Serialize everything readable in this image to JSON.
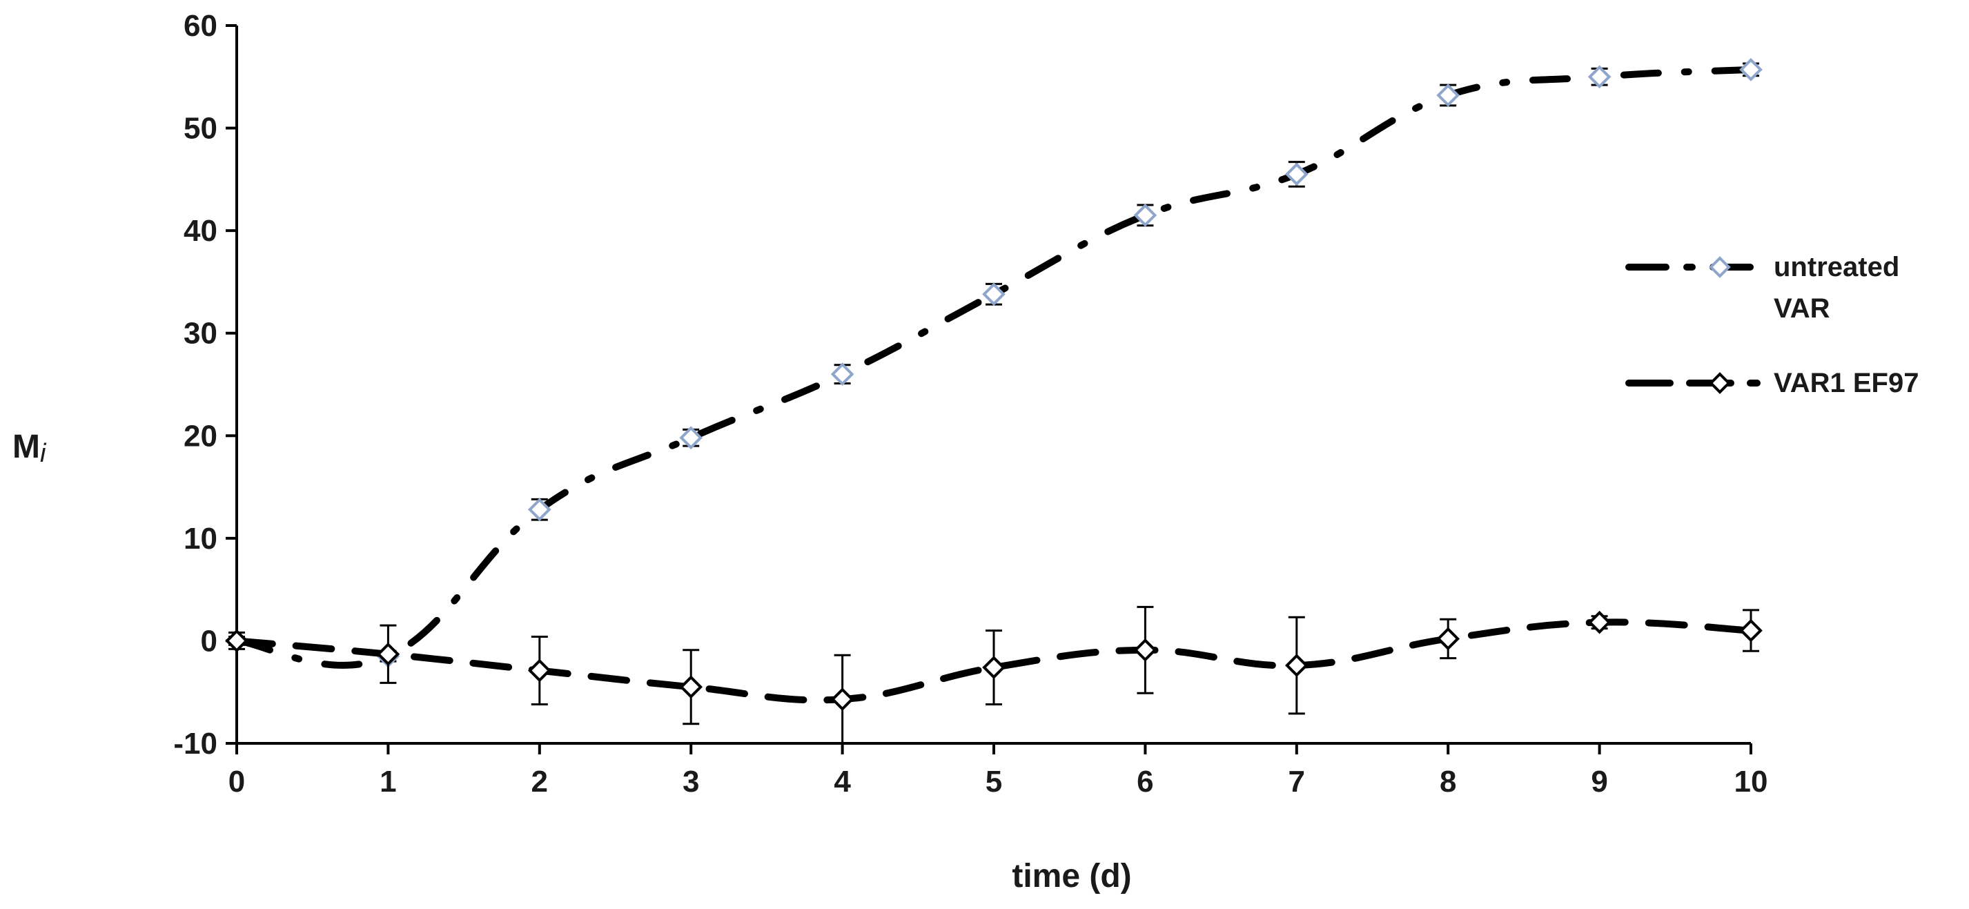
{
  "chart_data": {
    "type": "line",
    "title": "",
    "xlabel": "time (d)",
    "ylabel": "M",
    "ylabel_sub": "i",
    "xlim": [
      0,
      10
    ],
    "ylim": [
      -10,
      60
    ],
    "xticks": [
      0,
      1,
      2,
      3,
      4,
      5,
      6,
      7,
      8,
      9,
      10
    ],
    "yticks": [
      -10,
      0,
      10,
      20,
      30,
      40,
      50,
      60
    ],
    "grid": false,
    "legend_position": "right",
    "series": [
      {
        "name": "untreated VAR",
        "legend_lines": [
          "untreated",
          "VAR"
        ],
        "line_style": "dash-dot",
        "line_color": "#000000",
        "marker": "diamond",
        "marker_color": "#8ea6cc",
        "x": [
          0,
          1,
          2,
          3,
          4,
          5,
          6,
          7,
          8,
          9,
          10
        ],
        "values": [
          0,
          -1.5,
          12.8,
          19.8,
          26.0,
          33.8,
          41.5,
          45.5,
          53.2,
          55.0,
          55.7
        ],
        "errors": [
          0.4,
          0.5,
          1.0,
          0.8,
          0.9,
          1.0,
          1.0,
          1.2,
          1.0,
          0.8,
          0.6
        ]
      },
      {
        "name": "VAR1 EF97",
        "legend_lines": [
          "VAR1 EF97"
        ],
        "line_style": "dashed",
        "line_color": "#000000",
        "marker": "diamond",
        "marker_color": "#000000",
        "x": [
          0,
          1,
          2,
          3,
          4,
          5,
          6,
          7,
          8,
          9,
          10
        ],
        "values": [
          0,
          -1.3,
          -2.9,
          -4.5,
          -5.7,
          -2.6,
          -0.9,
          -2.4,
          0.2,
          1.8,
          1.0
        ],
        "errors": [
          0.8,
          2.8,
          3.3,
          3.6,
          4.3,
          3.6,
          4.2,
          4.7,
          1.9,
          0.6,
          2.0
        ]
      }
    ]
  }
}
